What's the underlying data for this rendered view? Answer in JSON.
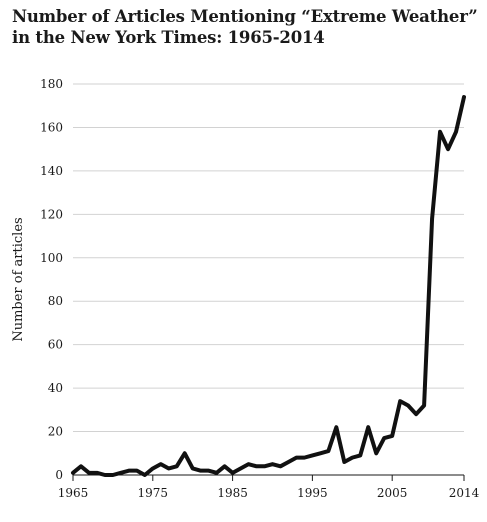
{
  "chart_data": {
    "type": "line",
    "title": "Number of Articles Mentioning “Extreme Weather”",
    "subtitle": "in the New York Times: 1965-2014",
    "xlabel": "",
    "ylabel": "Number of articles",
    "xlim": [
      1965,
      2014
    ],
    "ylim": [
      0,
      180
    ],
    "x_ticks": [
      "1965",
      "1975",
      "1985",
      "1995",
      "2005",
      "2014"
    ],
    "y_ticks": [
      "0",
      "20",
      "40",
      "60",
      "80",
      "100",
      "120",
      "140",
      "160",
      "180"
    ],
    "grid": "horizontal",
    "legend": "none",
    "line_color": "#111111",
    "x": [
      1965,
      1966,
      1967,
      1968,
      1969,
      1970,
      1971,
      1972,
      1973,
      1974,
      1975,
      1976,
      1977,
      1978,
      1979,
      1980,
      1981,
      1982,
      1983,
      1984,
      1985,
      1986,
      1987,
      1988,
      1989,
      1990,
      1991,
      1992,
      1993,
      1994,
      1995,
      1996,
      1997,
      1998,
      1999,
      2000,
      2001,
      2002,
      2003,
      2004,
      2005,
      2006,
      2007,
      2008,
      2009,
      2010,
      2011,
      2012,
      2013,
      2014
    ],
    "series": [
      {
        "values": [
          1,
          4,
          1,
          1,
          0,
          0,
          1,
          2,
          2,
          0,
          3,
          5,
          3,
          4,
          10,
          3,
          2,
          2,
          1,
          4,
          1,
          3,
          5,
          4,
          4,
          5,
          4,
          6,
          8,
          8,
          9,
          10,
          11,
          22,
          6,
          8,
          9,
          22,
          10,
          17,
          18,
          34,
          32,
          28,
          32,
          118,
          158,
          150,
          158,
          174
        ]
      }
    ]
  }
}
